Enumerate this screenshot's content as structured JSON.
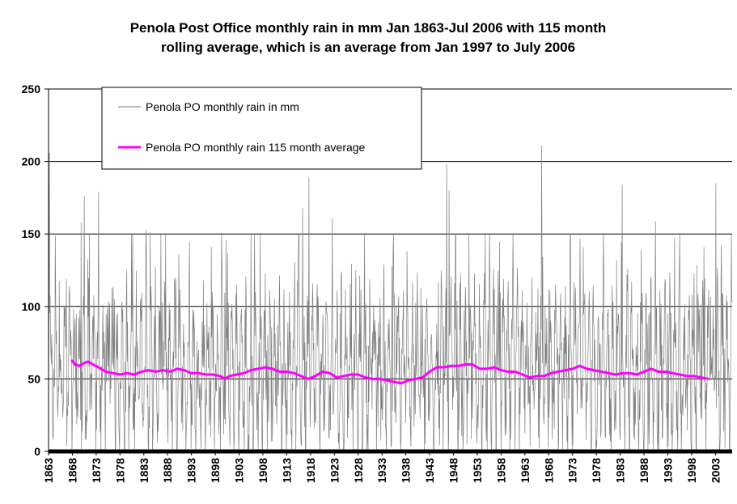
{
  "chart_data": {
    "type": "line",
    "title": "Penola Post Office monthly rain in mm Jan 1863-Jul 2006 with 115 month",
    "subtitle": "rolling average, which is an average from Jan 1997 to July 2006",
    "xlabel": "",
    "ylabel": "",
    "ylim": [
      0,
      250
    ],
    "xlim": [
      1863,
      2006.5
    ],
    "y_ticks": [
      "0",
      "50",
      "100",
      "150",
      "200",
      "250"
    ],
    "x_ticks": [
      "1863",
      "1868",
      "1873",
      "1878",
      "1883",
      "1888",
      "1893",
      "1898",
      "1903",
      "1908",
      "1913",
      "1918",
      "1923",
      "1928",
      "1933",
      "1938",
      "1943",
      "1948",
      "1953",
      "1958",
      "1963",
      "1968",
      "1973",
      "1978",
      "1983",
      "1988",
      "1993",
      "1998",
      "2003"
    ],
    "grid": true,
    "legend_position": "top-left",
    "monthly_series": {
      "name": "Penola PO monthly rain in mm",
      "color": "#808080",
      "x_start": 1863.0,
      "step_years": 0.08333,
      "peaks": [
        {
          "x": 1863.2,
          "y": 206
        },
        {
          "x": 1869.8,
          "y": 158
        },
        {
          "x": 1870.5,
          "y": 176
        },
        {
          "x": 1873.5,
          "y": 179
        },
        {
          "x": 1883.5,
          "y": 153
        },
        {
          "x": 1884.3,
          "y": 151
        },
        {
          "x": 1917.7,
          "y": 189
        },
        {
          "x": 1916.3,
          "y": 168
        },
        {
          "x": 1922.6,
          "y": 161
        },
        {
          "x": 1946.6,
          "y": 198
        },
        {
          "x": 1947.1,
          "y": 180
        },
        {
          "x": 1966.5,
          "y": 211
        },
        {
          "x": 1983.4,
          "y": 184
        },
        {
          "x": 2003.1,
          "y": 185
        },
        {
          "x": 1990.4,
          "y": 159
        }
      ]
    },
    "average_series": {
      "name": "Penola PO monthly rain 115 month average",
      "color": "#ff00ff",
      "x": [
        1867.8,
        1868.6,
        1869.5,
        1870.5,
        1871.3,
        1872.3,
        1873.5,
        1875.0,
        1876.5,
        1878.0,
        1879.5,
        1881.0,
        1882.5,
        1884.0,
        1885.5,
        1887.0,
        1888.5,
        1890.0,
        1891.5,
        1893.0,
        1894.5,
        1896.0,
        1897.5,
        1899.0,
        1900.0,
        1901.0,
        1902.5,
        1904.0,
        1905.5,
        1907.0,
        1908.5,
        1910.0,
        1911.5,
        1913.0,
        1914.5,
        1916.0,
        1917.5,
        1919.0,
        1920.5,
        1922.0,
        1923.5,
        1925.0,
        1926.5,
        1928.0,
        1929.5,
        1931.0,
        1932.5,
        1934.0,
        1935.5,
        1937.0,
        1938.5,
        1940.0,
        1941.5,
        1943.0,
        1944.5,
        1946.0,
        1947.5,
        1949.0,
        1950.5,
        1952.0,
        1953.5,
        1955.0,
        1956.5,
        1958.0,
        1959.5,
        1961.0,
        1962.5,
        1964.0,
        1965.5,
        1967.0,
        1968.5,
        1970.0,
        1971.5,
        1973.0,
        1974.5,
        1976.0,
        1977.5,
        1979.0,
        1980.5,
        1982.0,
        1983.5,
        1985.0,
        1986.5,
        1988.0,
        1989.5,
        1991.0,
        1992.5,
        1994.0,
        1995.5,
        1997.0,
        1998.5,
        2000.0,
        2001.5
      ],
      "y": [
        63,
        60,
        59,
        61,
        62,
        60,
        58,
        55,
        54,
        53,
        54,
        53,
        55,
        56,
        55,
        56,
        55,
        57,
        56,
        54,
        54,
        53,
        53,
        52,
        50,
        52,
        53,
        54,
        56,
        57,
        58,
        57,
        55,
        55,
        54,
        52,
        50,
        52,
        55,
        54,
        51,
        52,
        53,
        53,
        51,
        50,
        50,
        49,
        48,
        47,
        49,
        50,
        51,
        55,
        58,
        58,
        59,
        59,
        60,
        60,
        57,
        57,
        58,
        56,
        55,
        55,
        53,
        51,
        52,
        52,
        54,
        55,
        56,
        57,
        59,
        57,
        56,
        55,
        54,
        53,
        54,
        54,
        53,
        55,
        57,
        55,
        55,
        54,
        53,
        52,
        52,
        51,
        50
      ]
    }
  }
}
